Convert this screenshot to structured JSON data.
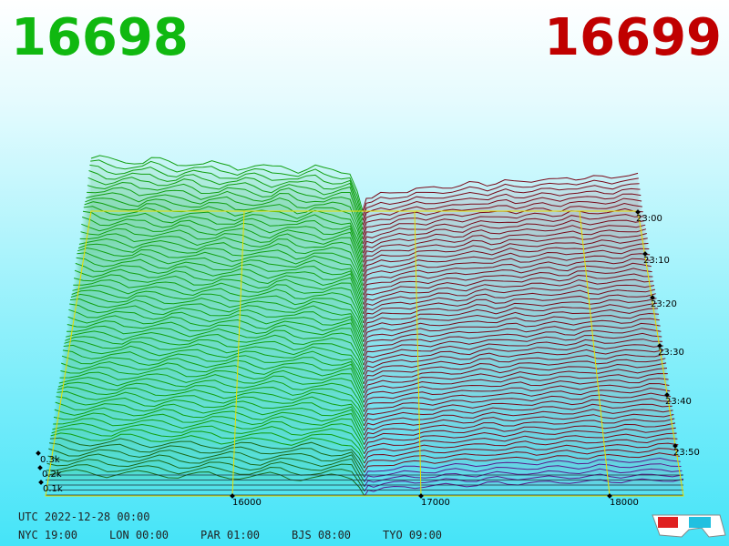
{
  "header": {
    "bid": "16698",
    "ask": "16699"
  },
  "axes": {
    "price_ticks": [
      "16000",
      "17000",
      "18000"
    ],
    "depth_ticks": [
      "0.1k",
      "0.2k",
      "0.3k"
    ],
    "time_ticks": [
      "23:00",
      "23:10",
      "23:20",
      "23:30",
      "23:40",
      "23:50"
    ]
  },
  "footer": {
    "utc": "UTC 2022-12-28 00:00",
    "clocks": [
      "NYC 19:00",
      "LON 00:00",
      "PAR 01:00",
      "BJS 08:00",
      "TYO 09:00"
    ]
  }
}
